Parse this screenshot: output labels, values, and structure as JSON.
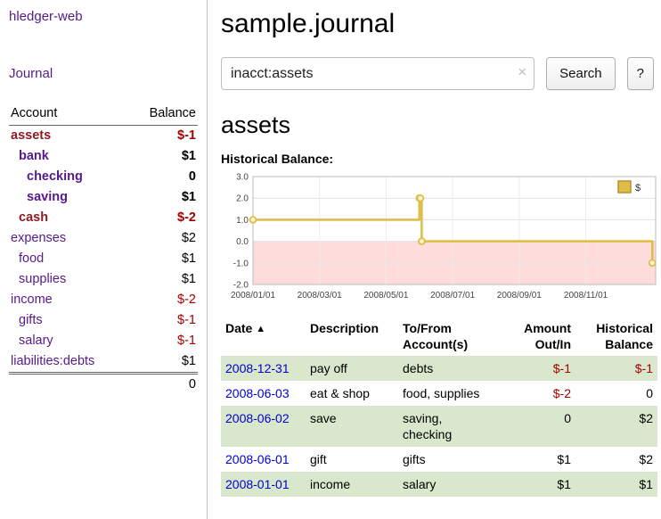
{
  "app": {
    "title": "hledger-web",
    "nav_journal": "Journal"
  },
  "sidebar": {
    "header": {
      "account": "Account",
      "balance": "Balance"
    },
    "accounts": [
      {
        "name": "assets",
        "balance": "$-1",
        "level": 0,
        "bold": true,
        "name_neg": true,
        "bal_neg": true
      },
      {
        "name": "bank",
        "balance": "$1",
        "level": 1,
        "bold": true,
        "name_neg": false,
        "bal_neg": false
      },
      {
        "name": "checking",
        "balance": "0",
        "level": 2,
        "bold": true,
        "name_neg": false,
        "bal_neg": false
      },
      {
        "name": "saving",
        "balance": "$1",
        "level": 2,
        "bold": true,
        "name_neg": false,
        "bal_neg": false
      },
      {
        "name": "cash",
        "balance": "$-2",
        "level": 1,
        "bold": true,
        "name_neg": true,
        "bal_neg": true
      },
      {
        "name": "expenses",
        "balance": "$2",
        "level": 0,
        "bold": false,
        "name_neg": false,
        "bal_neg": false
      },
      {
        "name": "food",
        "balance": "$1",
        "level": 1,
        "bold": false,
        "name_neg": false,
        "bal_neg": false
      },
      {
        "name": "supplies",
        "balance": "$1",
        "level": 1,
        "bold": false,
        "name_neg": false,
        "bal_neg": false
      },
      {
        "name": "income",
        "balance": "$-2",
        "level": 0,
        "bold": false,
        "name_neg": false,
        "bal_neg": true
      },
      {
        "name": "gifts",
        "balance": "$-1",
        "level": 1,
        "bold": false,
        "name_neg": false,
        "bal_neg": true
      },
      {
        "name": "salary",
        "balance": "$-1",
        "level": 1,
        "bold": false,
        "name_neg": false,
        "bal_neg": true
      },
      {
        "name": "liabilities:debts",
        "balance": "$1",
        "level": 0,
        "bold": false,
        "name_neg": false,
        "bal_neg": false
      }
    ],
    "total": "0"
  },
  "main": {
    "title": "sample.journal",
    "search": {
      "value": "inacct:assets",
      "clear_icon": "×",
      "button": "Search",
      "help": "?"
    },
    "account_heading": "assets",
    "chart_label": "Historical Balance:"
  },
  "chart_data": {
    "type": "line",
    "step": true,
    "title": "Historical Balance",
    "legend_label": "$",
    "legend_position": "top-right",
    "grid": true,
    "line_color": "#e0bd4a",
    "marker_fill": "#fcf3cf",
    "legend_swatch_border": "#b69329",
    "negative_region_fill": "#ffdcdc",
    "x_range": [
      0,
      12.1
    ],
    "y_range": [
      -2,
      3
    ],
    "x_tick_labels": [
      "2008/01/01",
      "2008/03/01",
      "2008/05/01",
      "2008/07/01",
      "2008/09/01",
      "2008/11/01"
    ],
    "x_tick_positions": [
      0,
      2,
      4,
      6,
      8,
      10
    ],
    "y_ticks": [
      -2,
      -1,
      0,
      1,
      2,
      3
    ],
    "points": [
      {
        "date": "2008-01-01",
        "months_from_start": 0,
        "balance": 1
      },
      {
        "date": "2008-06-01",
        "months_from_start": 5,
        "balance": 2
      },
      {
        "date": "2008-06-02",
        "months_from_start": 5.03,
        "balance": 2
      },
      {
        "date": "2008-06-03",
        "months_from_start": 5.07,
        "balance": 0
      },
      {
        "date": "2008-12-31",
        "months_from_start": 12,
        "balance": -1
      }
    ]
  },
  "register": {
    "headers": {
      "date": "Date",
      "sort_icon": "▲",
      "description": "Description",
      "accounts": "To/From\nAccount(s)",
      "amount": "Amount\nOut/In",
      "balance": "Historical\nBalance"
    },
    "rows": [
      {
        "date": "2008-12-31",
        "description": "pay off",
        "accounts": "debts",
        "amount": "$-1",
        "amount_neg": true,
        "balance": "$-1",
        "balance_neg": true,
        "shade": true
      },
      {
        "date": "2008-06-03",
        "description": "eat & shop",
        "accounts": "food, supplies",
        "amount": "$-2",
        "amount_neg": true,
        "balance": "0",
        "balance_neg": false,
        "shade": false
      },
      {
        "date": "2008-06-02",
        "description": "save",
        "accounts": "saving,\nchecking",
        "amount": "0",
        "amount_neg": false,
        "balance": "$2",
        "balance_neg": false,
        "shade": true
      },
      {
        "date": "2008-06-01",
        "description": "gift",
        "accounts": "gifts",
        "amount": "$1",
        "amount_neg": false,
        "balance": "$2",
        "balance_neg": false,
        "shade": false
      },
      {
        "date": "2008-01-01",
        "description": "income",
        "accounts": "salary",
        "amount": "$1",
        "amount_neg": false,
        "balance": "$1",
        "balance_neg": false,
        "shade": true
      }
    ]
  }
}
